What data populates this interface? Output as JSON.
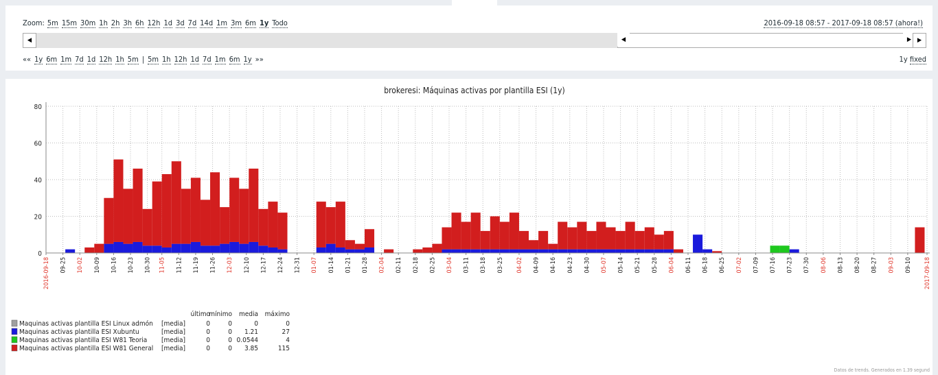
{
  "ui": {
    "zoom_label": "Zoom:",
    "zoom": [
      "5m",
      "15m",
      "30m",
      "1h",
      "2h",
      "3h",
      "6h",
      "12h",
      "1d",
      "3d",
      "7d",
      "14d",
      "1m",
      "3m",
      "6m",
      "1y",
      "Todo"
    ],
    "zoom_selected": 15,
    "period": "2016-09-18 08:57 - 2017-09-18 08:57 (ahora!)",
    "nav_back": "««",
    "nav_left": [
      "1y",
      "6m",
      "1m",
      "7d",
      "1d",
      "12h",
      "1h",
      "5m"
    ],
    "nav_sep": "|",
    "nav_right": [
      "5m",
      "1h",
      "12h",
      "1d",
      "7d",
      "1m",
      "6m",
      "1y"
    ],
    "nav_fwd": "»»",
    "period_len": "1y",
    "fixed": "fixed",
    "footer": "Datos de trends. Generados en 1.39 segund"
  },
  "chart_data": {
    "type": "stacked_bar",
    "title": "brokeresi: Máquinas activas por plantilla ESI (1y)",
    "xlim": [
      0,
      365
    ],
    "ylim": [
      0,
      80
    ],
    "yticks": [
      0,
      20,
      40,
      60,
      80
    ],
    "grid": true,
    "xticks": [
      {
        "value": 0,
        "label": "2016-09-18"
      },
      {
        "value": 7,
        "label": "09-25"
      },
      {
        "value": 14,
        "label": "10-02"
      },
      {
        "value": 21,
        "label": "10-09"
      },
      {
        "value": 28,
        "label": "10-16"
      },
      {
        "value": 35,
        "label": "10-23"
      },
      {
        "value": 42,
        "label": "10-30"
      },
      {
        "value": 48,
        "label": "11-05"
      },
      {
        "value": 55,
        "label": "11-12"
      },
      {
        "value": 62,
        "label": "11-19"
      },
      {
        "value": 69,
        "label": "11-26"
      },
      {
        "value": 76,
        "label": "12-03"
      },
      {
        "value": 83,
        "label": "12-10"
      },
      {
        "value": 90,
        "label": "12-17"
      },
      {
        "value": 97,
        "label": "12-24"
      },
      {
        "value": 104,
        "label": "12-31"
      },
      {
        "value": 111,
        "label": "01-07"
      },
      {
        "value": 118,
        "label": "01-14"
      },
      {
        "value": 125,
        "label": "01-21"
      },
      {
        "value": 132,
        "label": "01-28"
      },
      {
        "value": 139,
        "label": "02-04"
      },
      {
        "value": 146,
        "label": "02-11"
      },
      {
        "value": 153,
        "label": "02-18"
      },
      {
        "value": 160,
        "label": "02-25"
      },
      {
        "value": 167,
        "label": "03-04"
      },
      {
        "value": 174,
        "label": "03-11"
      },
      {
        "value": 181,
        "label": "03-18"
      },
      {
        "value": 188,
        "label": "03-25"
      },
      {
        "value": 196,
        "label": "04-02"
      },
      {
        "value": 203,
        "label": "04-09"
      },
      {
        "value": 210,
        "label": "04-16"
      },
      {
        "value": 217,
        "label": "04-23"
      },
      {
        "value": 224,
        "label": "04-30"
      },
      {
        "value": 231,
        "label": "05-07"
      },
      {
        "value": 238,
        "label": "05-14"
      },
      {
        "value": 245,
        "label": "05-21"
      },
      {
        "value": 252,
        "label": "05-28"
      },
      {
        "value": 259,
        "label": "06-04"
      },
      {
        "value": 266,
        "label": "06-11"
      },
      {
        "value": 273,
        "label": "06-18"
      },
      {
        "value": 280,
        "label": "06-25"
      },
      {
        "value": 287,
        "label": "07-02"
      },
      {
        "value": 294,
        "label": "07-09"
      },
      {
        "value": 301,
        "label": "07-16"
      },
      {
        "value": 308,
        "label": "07-23"
      },
      {
        "value": 315,
        "label": "07-30"
      },
      {
        "value": 322,
        "label": "08-06"
      },
      {
        "value": 329,
        "label": "08-13"
      },
      {
        "value": 336,
        "label": "08-20"
      },
      {
        "value": 343,
        "label": "08-27"
      },
      {
        "value": 350,
        "label": "09-03"
      },
      {
        "value": 357,
        "label": "09-10"
      },
      {
        "value": 365,
        "label": "2017-09-18"
      }
    ],
    "xtick_highlight": [
      0,
      2,
      7,
      11,
      16,
      20,
      24,
      28,
      33,
      37,
      41,
      46,
      50,
      52
    ],
    "highlight_color": "#e0362b",
    "bar_width": 4,
    "x": [
      0,
      4,
      8,
      12,
      16,
      20,
      24,
      28,
      32,
      36,
      40,
      44,
      48,
      52,
      56,
      60,
      64,
      68,
      72,
      76,
      80,
      84,
      88,
      92,
      96,
      100,
      104,
      108,
      112,
      116,
      120,
      124,
      128,
      132,
      136,
      140,
      144,
      148,
      152,
      156,
      160,
      164,
      168,
      172,
      176,
      180,
      184,
      188,
      192,
      196,
      200,
      204,
      208,
      212,
      216,
      220,
      224,
      228,
      232,
      236,
      240,
      244,
      248,
      252,
      256,
      260,
      264,
      268,
      272,
      276,
      280,
      284,
      288,
      292,
      296,
      300,
      304,
      308,
      312,
      316,
      320,
      324,
      328,
      332,
      336,
      340,
      344,
      348,
      352,
      356,
      360,
      364
    ],
    "legend_headers": [
      "último",
      "mínimo",
      "media",
      "máximo"
    ],
    "series": [
      {
        "name": "Maquinas activas plantilla ESI Linux admón",
        "func": "[media]",
        "last": 0,
        "min": 0,
        "avg": 0,
        "max": 0,
        "color": "#a0a0a0",
        "values": [
          0,
          0,
          0,
          0,
          0,
          0,
          0,
          0,
          0,
          0,
          0,
          0,
          0,
          0,
          0,
          0,
          0,
          0,
          0,
          0,
          0,
          0,
          0,
          0,
          0,
          0,
          0,
          0,
          0,
          0,
          0,
          0,
          0,
          0,
          0,
          0,
          0,
          0,
          0,
          0,
          0,
          0,
          0,
          0,
          0,
          0,
          0,
          0,
          0,
          0,
          0,
          0,
          0,
          0,
          0,
          0,
          0,
          0,
          0,
          0,
          0,
          0,
          0,
          0,
          0,
          0,
          0,
          0,
          0,
          0,
          0,
          0,
          0,
          0,
          0,
          0,
          0,
          0,
          0,
          0,
          0,
          0,
          0,
          0,
          0,
          0,
          0,
          0,
          0,
          0,
          0,
          0
        ]
      },
      {
        "name": "Maquinas activas plantilla ESI Xubuntu",
        "func": "[media]",
        "last": 0,
        "min": 0,
        "avg": 1.21,
        "max": 27,
        "color": "#1a1adc",
        "values": [
          0,
          0,
          2,
          0,
          0,
          0,
          5,
          6,
          5,
          6,
          4,
          4,
          3,
          5,
          5,
          6,
          4,
          4,
          5,
          6,
          5,
          6,
          4,
          3,
          2,
          0,
          0,
          0,
          3,
          5,
          3,
          2,
          2,
          3,
          0,
          0,
          0,
          0,
          0,
          0,
          0,
          2,
          2,
          2,
          2,
          2,
          2,
          2,
          2,
          2,
          2,
          2,
          2,
          2,
          2,
          2,
          2,
          2,
          2,
          2,
          2,
          2,
          2,
          2,
          2,
          0,
          0,
          10,
          2,
          0,
          0,
          0,
          0,
          0,
          0,
          0,
          0,
          2,
          0,
          0,
          0,
          0,
          0,
          0,
          0,
          0,
          0,
          0,
          0,
          0,
          0,
          0
        ]
      },
      {
        "name": "Maquinas activas plantilla ESI W81 Teoria",
        "func": "[media]",
        "last": 0,
        "min": 0,
        "avg": 0.0544,
        "max": 4,
        "color": "#1ec81e",
        "values": [
          0,
          0,
          0,
          0,
          0,
          0,
          0,
          0,
          0,
          0,
          0,
          0,
          0,
          0,
          0,
          0,
          0,
          0,
          0,
          0,
          0,
          0,
          0,
          0,
          0,
          0,
          0,
          0,
          0,
          0,
          0,
          0,
          0,
          0,
          0,
          0,
          0,
          0,
          0,
          0,
          0,
          0,
          0,
          0,
          0,
          0,
          0,
          0,
          0,
          0,
          0,
          0,
          0,
          0,
          0,
          0,
          0,
          0,
          0,
          0,
          0,
          0,
          0,
          0,
          0,
          0,
          0,
          0,
          0,
          0,
          0,
          0,
          0,
          0,
          0,
          4,
          4,
          0,
          0,
          0,
          0,
          0,
          0,
          0,
          0,
          0,
          0,
          0,
          0,
          0,
          0,
          0
        ]
      },
      {
        "name": "Maquinas activas plantilla ESI W81 General",
        "func": "[media]",
        "last": 0,
        "min": 0,
        "avg": 3.85,
        "max": 115,
        "color": "#d21e1e",
        "values": [
          0,
          0,
          0,
          0,
          3,
          5,
          25,
          45,
          30,
          40,
          20,
          35,
          40,
          45,
          30,
          35,
          25,
          40,
          20,
          35,
          30,
          40,
          20,
          25,
          20,
          0,
          0,
          0,
          25,
          20,
          25,
          5,
          3,
          10,
          0,
          2,
          0,
          0,
          2,
          3,
          5,
          12,
          20,
          15,
          20,
          10,
          18,
          15,
          20,
          10,
          5,
          10,
          3,
          15,
          12,
          15,
          10,
          15,
          12,
          10,
          15,
          10,
          12,
          8,
          10,
          2,
          0,
          0,
          0,
          1,
          0,
          0,
          0,
          0,
          0,
          0,
          0,
          0,
          0,
          0,
          0,
          0,
          0,
          0,
          0,
          0,
          0,
          0,
          0,
          0,
          14,
          0
        ]
      }
    ]
  }
}
